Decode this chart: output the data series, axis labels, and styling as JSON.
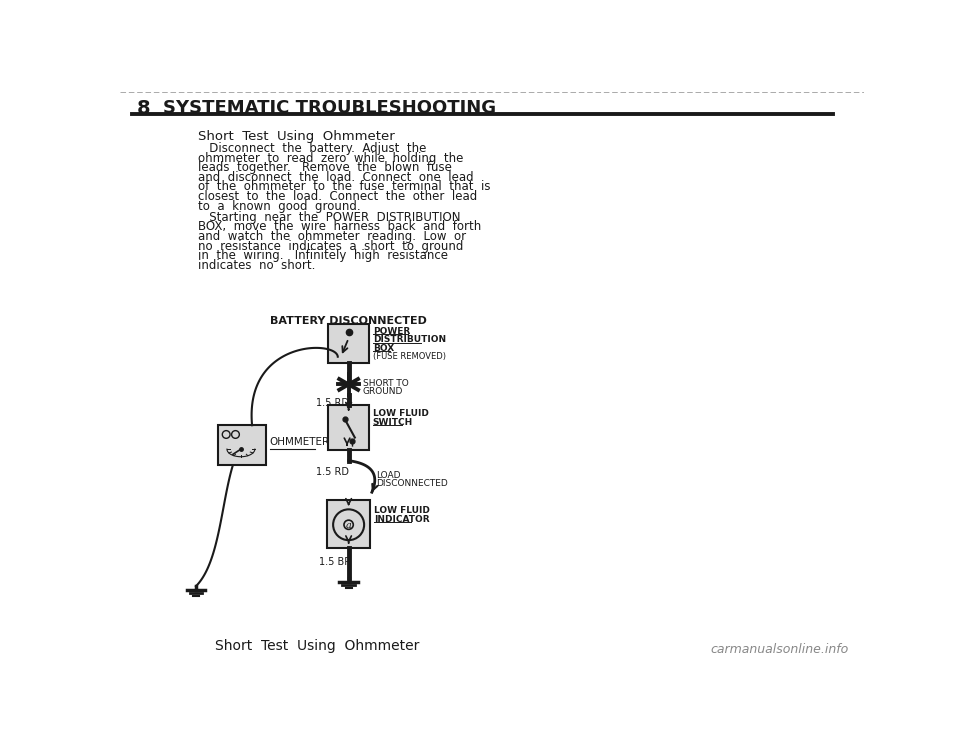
{
  "page_num": "8",
  "header_title": "SYSTEMATIC TROUBLESHOOTING",
  "section_title": "Short  Test  Using  Ohmmeter",
  "body_text_1": [
    "   Disconnect  the  battery.  Adjust  the",
    "ohmmeter  to  read  zero  while  holding  the",
    "leads  together.   Remove  the  blown  fuse",
    "and  disconnect  the  load.  Connect  one  lead",
    "of  the  ohmmeter  to  the  fuse  terminal  that  is",
    "closest  to  the  load.  Connect  the  other  lead",
    "to  a  known  good  ground."
  ],
  "body_text_2": [
    "   Starting  near  the  POWER  DISTRIBUTION",
    "BOX,  move  the  wire  harness  back  and  forth",
    "and  watch  the  ohmmeter  reading.  Low  or",
    "no  resistance  indicates  a  short  to  ground",
    "in  the  wiring.   Infinitely  high  resistance",
    "indicates  no  short."
  ],
  "diagram_title": "BATTERY DISCONNECTED",
  "label_pdb_1": "POWER",
  "label_pdb_2": "DISTRIBUTION",
  "label_pdb_3": "BOX",
  "label_pdb_4": "(FUSE REMOVED)",
  "label_short_1": "SHORT TO",
  "label_short_2": "GROUND",
  "label_wire_rd1": "1.5 RD",
  "label_ohmmeter": "OHMMETER",
  "label_lfs_1": "LOW FLUID",
  "label_lfs_2": "SWITCH",
  "label_wire_rd2": "1.5 RD",
  "label_load_1": "LOAD",
  "label_load_2": "DISCONNECTED",
  "label_lfi_1": "LOW FLUID",
  "label_lfi_2": "INDICATOR",
  "label_wire_br": "1.5 BR",
  "footer_text": "Short  Test  Using  Ohmmeter",
  "watermark": "carmanualsonline.info",
  "bg_color": "#ffffff",
  "text_color": "#1a1a1a",
  "line_color": "#1a1a1a",
  "box_fill": "#d8d8d8"
}
